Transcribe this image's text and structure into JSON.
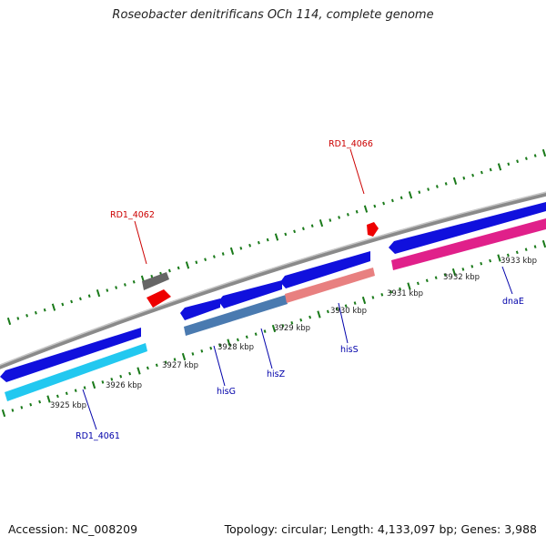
{
  "title": "Roseobacter denitrificans OCh 114, complete genome",
  "footer": {
    "accession": "Accession: NC_008209",
    "summary": "Topology: circular; Length: 4,133,097 bp; Genes: 3,988"
  },
  "tick_labels": [
    "3925 kbp",
    "3926 kbp",
    "3927 kbp",
    "3928 kbp",
    "3929 kbp",
    "3930 kbp",
    "3931 kbp",
    "3932 kbp",
    "3933 kbp"
  ],
  "gene_labels": {
    "rd1_4062": "RD1_4062",
    "rd1_4066": "RD1_4066",
    "rd1_4061": "RD1_4061",
    "hisG": "hisG",
    "hisZ": "hisZ",
    "hisS": "hisS",
    "dnaE": "dnaE"
  },
  "colors": {
    "backbone": "#8a8a8a",
    "tick": "#1a7a1a",
    "cds": "#1010dd",
    "cyan_feature": "#22c8f0",
    "steel_feature": "#4a7ab0",
    "salmon_feature": "#e88080",
    "magenta_feature": "#e0208a",
    "pseudo_gray": "#666666",
    "red_feature": "#ee0000",
    "label_blue": "#0000aa",
    "label_red": "#cc0000"
  }
}
